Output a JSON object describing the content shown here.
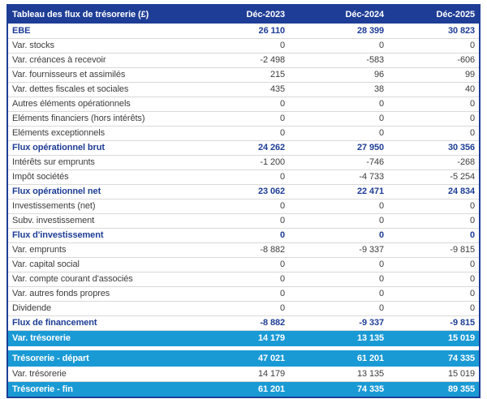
{
  "table": {
    "title": "Tableau des flux de trésorerie (£)",
    "columns": [
      "Déc-2023",
      "Déc-2024",
      "Déc-2025"
    ],
    "colors": {
      "header_bg": "#1e3d96",
      "band_bg": "#1a9ad5",
      "bold_text": "#1e3d96",
      "body_text": "#3d3d3d",
      "separator": "#d9d9d9"
    },
    "rows": [
      {
        "label": "EBE",
        "style": "bold",
        "values": [
          "26 110",
          "28 399",
          "30 823"
        ]
      },
      {
        "label": "Var. stocks",
        "style": "normal",
        "values": [
          "0",
          "0",
          "0"
        ]
      },
      {
        "label": "Var. créances à recevoir",
        "style": "normal",
        "values": [
          "-2 498",
          "-583",
          "-606"
        ]
      },
      {
        "label": "Var. fournisseurs et assimilés",
        "style": "normal",
        "values": [
          "215",
          "96",
          "99"
        ]
      },
      {
        "label": "Var. dettes fiscales et sociales",
        "style": "normal",
        "values": [
          "435",
          "38",
          "40"
        ]
      },
      {
        "label": "Autres éléments opérationnels",
        "style": "normal",
        "values": [
          "0",
          "0",
          "0"
        ]
      },
      {
        "label": "Eléments financiers (hors intérêts)",
        "style": "normal",
        "values": [
          "0",
          "0",
          "0"
        ]
      },
      {
        "label": "Eléments exceptionnels",
        "style": "normal",
        "values": [
          "0",
          "0",
          "0"
        ]
      },
      {
        "label": "Flux opérationnel brut",
        "style": "bold",
        "values": [
          "24 262",
          "27 950",
          "30 356"
        ]
      },
      {
        "label": "Intérêts sur emprunts",
        "style": "normal",
        "values": [
          "-1 200",
          "-746",
          "-268"
        ]
      },
      {
        "label": "Impôt sociétés",
        "style": "normal",
        "values": [
          "0",
          "-4 733",
          "-5 254"
        ]
      },
      {
        "label": "Flux opérationnel net",
        "style": "bold",
        "values": [
          "23 062",
          "22 471",
          "24 834"
        ]
      },
      {
        "label": "Investissements (net)",
        "style": "normal",
        "values": [
          "0",
          "0",
          "0"
        ]
      },
      {
        "label": "Subv. investissement",
        "style": "normal",
        "values": [
          "0",
          "0",
          "0"
        ]
      },
      {
        "label": "Flux d'investissement",
        "style": "bold",
        "values": [
          "0",
          "0",
          "0"
        ]
      },
      {
        "label": "Var. emprunts",
        "style": "normal",
        "values": [
          "-8 882",
          "-9 337",
          "-9 815"
        ]
      },
      {
        "label": "Var. capital social",
        "style": "normal",
        "values": [
          "0",
          "0",
          "0"
        ]
      },
      {
        "label": "Var. compte courant d'associés",
        "style": "normal",
        "values": [
          "0",
          "0",
          "0"
        ]
      },
      {
        "label": "Var. autres fonds propres",
        "style": "normal",
        "values": [
          "0",
          "0",
          "0"
        ]
      },
      {
        "label": "Dividende",
        "style": "normal",
        "values": [
          "0",
          "0",
          "0"
        ]
      },
      {
        "label": "Flux de financement",
        "style": "bold",
        "values": [
          "-8 882",
          "-9 337",
          "-9 815"
        ]
      },
      {
        "label": "Var. trésorerie",
        "style": "band",
        "values": [
          "14 179",
          "13 135",
          "15 019"
        ]
      },
      {
        "style": "gap"
      },
      {
        "label": "Trésorerie - départ",
        "style": "band",
        "values": [
          "47 021",
          "61 201",
          "74 335"
        ]
      },
      {
        "label": "Var. trésorerie",
        "style": "normal",
        "values": [
          "14 179",
          "13 135",
          "15 019"
        ]
      },
      {
        "label": "Trésorerie - fin",
        "style": "band",
        "values": [
          "61 201",
          "74 335",
          "89 355"
        ]
      }
    ]
  }
}
